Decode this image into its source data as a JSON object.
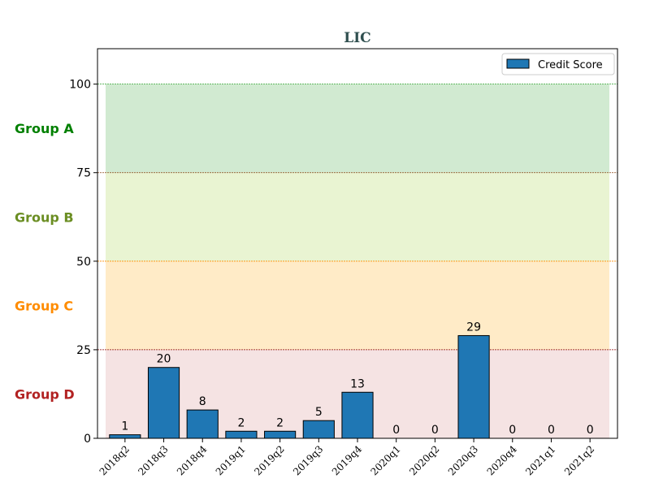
{
  "chart_data": {
    "type": "bar",
    "title": "LIC",
    "categories": [
      "2018q2",
      "2018q3",
      "2018q4",
      "2019q1",
      "2019q2",
      "2019q3",
      "2019q4",
      "2020q1",
      "2020q2",
      "2020q3",
      "2020q4",
      "2021q1",
      "2021q2"
    ],
    "series": [
      {
        "name": "Credit Score",
        "values": [
          1,
          20,
          8,
          2,
          2,
          5,
          13,
          0,
          0,
          29,
          0,
          0,
          0
        ],
        "color": "#1f77b4"
      }
    ],
    "ylim": [
      0,
      110
    ],
    "yticks": [
      0,
      25,
      50,
      75,
      100
    ],
    "legend": {
      "position": "top-right"
    },
    "bands": [
      {
        "label": "Group A",
        "from": 75,
        "to": 100,
        "color": "#2ca02c",
        "label_color": "#008000",
        "line_color": "#2ca02c"
      },
      {
        "label": "Group B",
        "from": 50,
        "to": 75,
        "color": "#9acd32",
        "label_color": "#6b8e23",
        "line_color": "#8b4513"
      },
      {
        "label": "Group C",
        "from": 25,
        "to": 50,
        "color": "#ffa500",
        "label_color": "#ff8c00",
        "line_color": "#ff8c00"
      },
      {
        "label": "Group D",
        "from": 0,
        "to": 25,
        "color": "#d08080",
        "label_color": "#b22222",
        "line_color": "#8b0000"
      }
    ]
  }
}
